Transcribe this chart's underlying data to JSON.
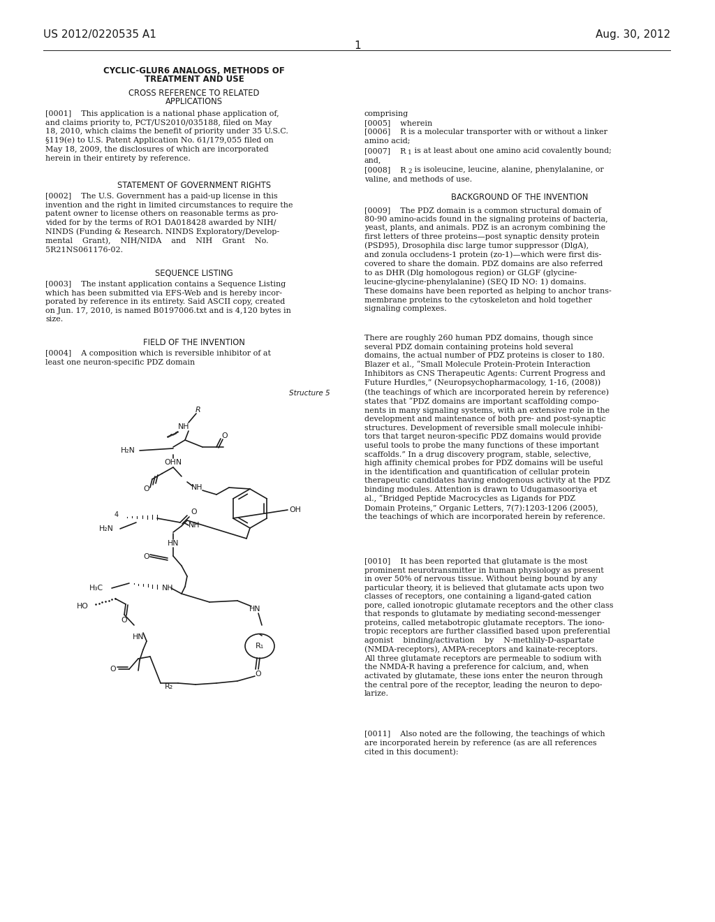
{
  "bg_color": "#ffffff",
  "text_color": "#1a1a1a",
  "header_left": "US 2012/0220535 A1",
  "header_right": "Aug. 30, 2012",
  "page_number": "1"
}
